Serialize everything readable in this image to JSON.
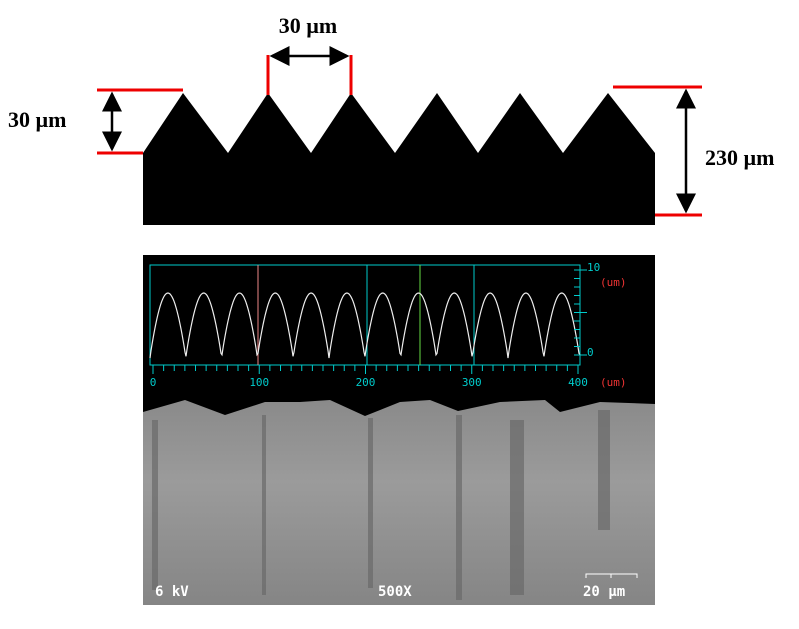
{
  "schematic": {
    "pitch_label": "30 µm",
    "height_label": "30 µm",
    "thickness_label": "230 µm"
  },
  "profile": {
    "x_ticks": [
      "0",
      "100",
      "200",
      "300",
      "400"
    ],
    "x_unit": "(um)",
    "y_ticks": [
      "10",
      "0"
    ],
    "y_unit": "(um)"
  },
  "sem": {
    "voltage": "6 kV",
    "magnification": "500X",
    "scale_bar": "20 µm"
  }
}
